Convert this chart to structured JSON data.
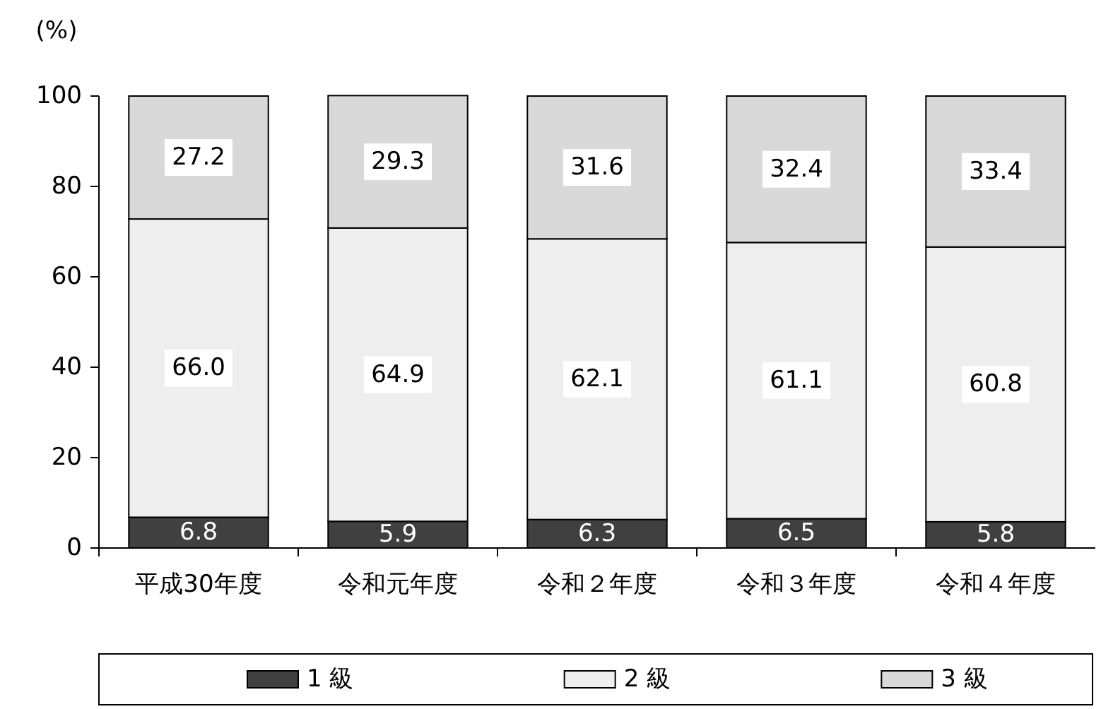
{
  "chart_data": {
    "type": "bar",
    "stacked": true,
    "ylabel": "(%)",
    "categories": [
      "平成30年度",
      "令和元年度",
      "令和２年度",
      "令和３年度",
      "令和４年度"
    ],
    "ylim": [
      0,
      100
    ],
    "yticks": [
      0,
      20,
      40,
      60,
      80,
      100
    ],
    "legend": "bottom",
    "grid": false,
    "series": [
      {
        "name": "1 級",
        "color": "#404040",
        "values": [
          6.8,
          5.9,
          6.3,
          6.5,
          5.8
        ],
        "value_labels": [
          "6.8",
          "5.9",
          "6.3",
          "6.5",
          "5.8"
        ]
      },
      {
        "name": "2 級",
        "color": "#eeeeee",
        "values": [
          66.0,
          64.9,
          62.1,
          61.1,
          60.8
        ],
        "value_labels": [
          "66.0",
          "64.9",
          "62.1",
          "61.1",
          "60.8"
        ]
      },
      {
        "name": "3 級",
        "color": "#d9d9d9",
        "values": [
          27.2,
          29.3,
          31.6,
          32.4,
          33.4
        ],
        "value_labels": [
          "27.2",
          "29.3",
          "31.6",
          "32.4",
          "33.4"
        ]
      }
    ]
  }
}
